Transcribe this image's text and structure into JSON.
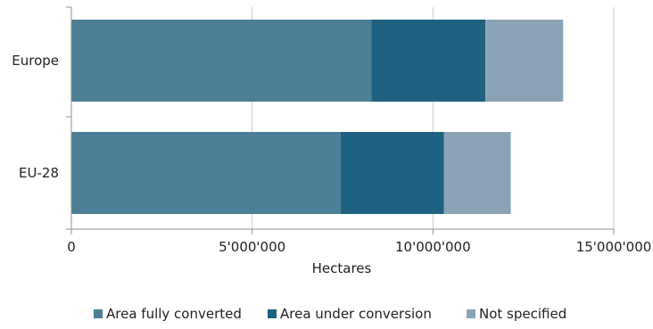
{
  "chart_data": {
    "type": "bar",
    "orientation": "horizontal",
    "stacked": true,
    "categories": [
      "Europe",
      "EU-28"
    ],
    "series": [
      {
        "name": "Area fully converted",
        "values": [
          8300000,
          7450000
        ],
        "color": "#4d7f97"
      },
      {
        "name": "Area under conversion",
        "values": [
          3150000,
          2850000
        ],
        "color": "#1f6180"
      },
      {
        "name": "Not specified",
        "values": [
          2150000,
          1850000
        ],
        "color": "#8aa4b5"
      }
    ],
    "xlabel": "Hectares",
    "ylabel": "",
    "xlim": [
      0,
      15000000
    ],
    "xticks": [
      0,
      5000000,
      10000000,
      15000000
    ],
    "xtick_labels": [
      "0",
      "5'000'000",
      "10'000'000",
      "15'000'000"
    ],
    "grid": "vertical",
    "legend_position": "bottom"
  }
}
